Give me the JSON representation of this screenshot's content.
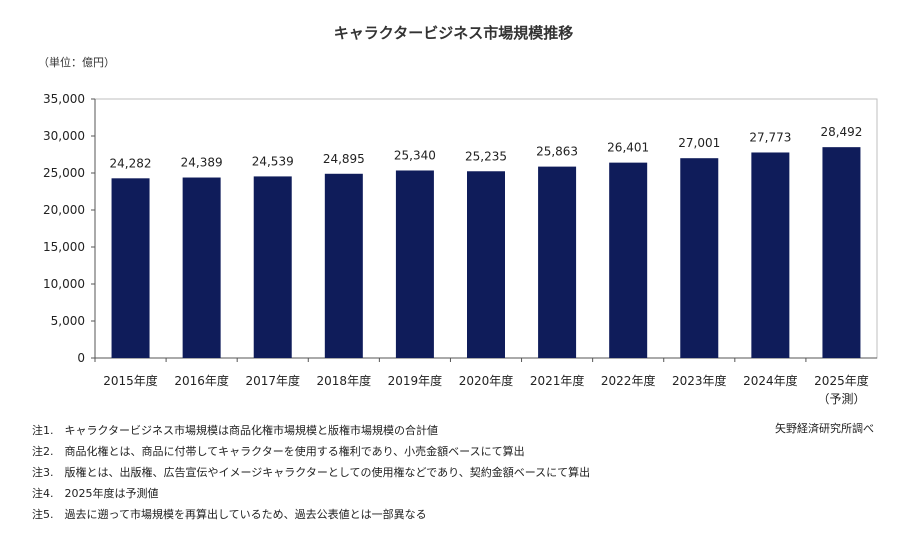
{
  "title": "キャラクタービジネス市場規模推移",
  "unit_label": "（単位：億円）",
  "source": "矢野経済研究所調べ",
  "notes": [
    "注1.　キャラクタービジネス市場規模は商品化権市場規模と版権市場規模の合計値",
    "注2.　商品化権とは、商品に付帯してキャラクターを使用する権利であり、小売金額ベースにて算出",
    "注3.　版権とは、出版権、広告宣伝やイメージキャラクターとしての使用権などであり、契約金額ベースにて算出",
    "注4.　2025年度は予測値",
    "注5.　過去に遡って市場規模を再算出しているため、過去公表値とは一部異なる"
  ],
  "chart_data": {
    "type": "bar",
    "categories": [
      "2015年度",
      "2016年度",
      "2017年度",
      "2018年度",
      "2019年度",
      "2020年度",
      "2021年度",
      "2022年度",
      "2023年度",
      "2024年度",
      "2025年度"
    ],
    "category_sublabels": [
      "",
      "",
      "",
      "",
      "",
      "",
      "",
      "",
      "",
      "",
      "（予測）"
    ],
    "values": [
      24282,
      24389,
      24539,
      24895,
      25340,
      25235,
      25863,
      26401,
      27001,
      27773,
      28492
    ],
    "value_labels": [
      "24,282",
      "24,389",
      "24,539",
      "24,895",
      "25,340",
      "25,235",
      "25,863",
      "26,401",
      "27,001",
      "27,773",
      "28,492"
    ],
    "y_ticks": [
      "0",
      "5,000",
      "10,000",
      "15,000",
      "20,000",
      "25,000",
      "30,000",
      "35,000"
    ],
    "ylim": [
      0,
      35000
    ],
    "grid": false,
    "bar_color": "#0f1c5a"
  }
}
